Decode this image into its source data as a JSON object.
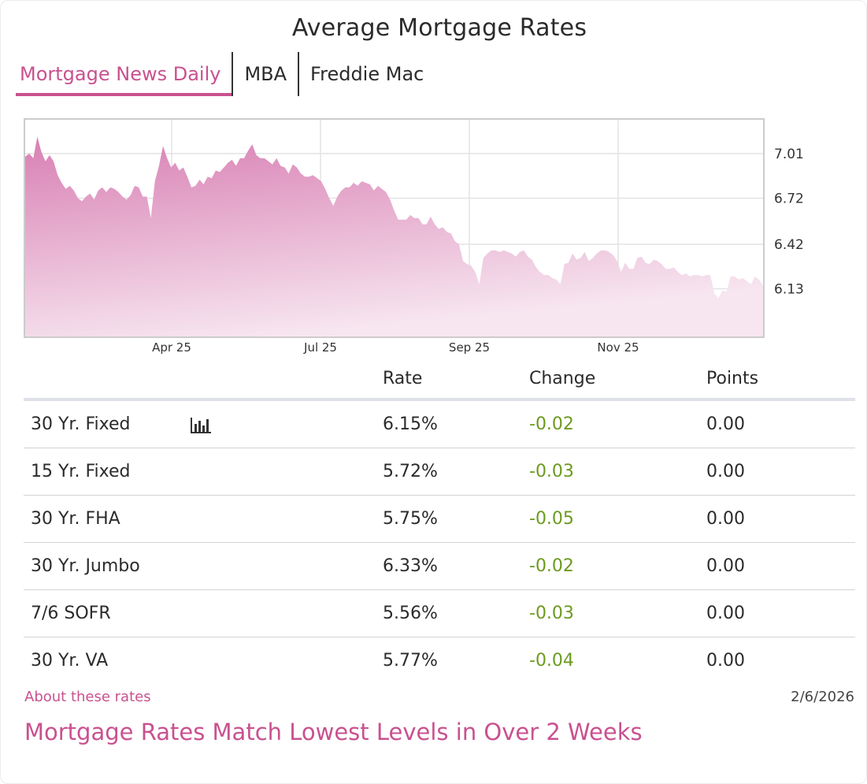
{
  "title": "Average Mortgage Rates",
  "tabs": [
    {
      "label": "Mortgage News Daily",
      "active": true
    },
    {
      "label": "MBA",
      "active": false
    },
    {
      "label": "Freddie Mac",
      "active": false
    }
  ],
  "colors": {
    "accent": "#c9518f",
    "negative_change": "#6c9a1f",
    "area_top": "#d87fb3",
    "area_bottom": "#f7e6f0"
  },
  "chart_data": {
    "type": "area",
    "title": "",
    "xlabel": "",
    "ylabel": "",
    "x_tick_labels": [
      "Apr 25",
      "Jul 25",
      "Sep 25",
      "Nov 25"
    ],
    "y_tick_labels": [
      "7.01",
      "6.72",
      "6.42",
      "6.13"
    ],
    "y_ticks": [
      7.01,
      6.72,
      6.42,
      6.13
    ],
    "ylim": [
      5.82,
      7.23
    ],
    "grid": true,
    "series": [
      {
        "values": [
          6.99,
          7.01,
          6.98,
          7.12,
          7.02,
          6.96,
          7.0,
          6.96,
          6.87,
          6.82,
          6.78,
          6.8,
          6.77,
          6.72,
          6.7,
          6.73,
          6.75,
          6.71,
          6.77,
          6.79,
          6.76,
          6.79,
          6.78,
          6.76,
          6.73,
          6.71,
          6.74,
          6.8,
          6.79,
          6.73,
          6.73,
          6.59,
          6.83,
          6.93,
          7.06,
          6.98,
          6.92,
          6.95,
          6.9,
          6.92,
          6.86,
          6.79,
          6.8,
          6.84,
          6.81,
          6.86,
          6.85,
          6.9,
          6.89,
          6.92,
          6.95,
          6.97,
          6.93,
          6.98,
          6.98,
          7.03,
          7.07,
          7.0,
          6.98,
          6.98,
          6.96,
          6.94,
          6.98,
          6.93,
          6.92,
          6.88,
          6.94,
          6.92,
          6.88,
          6.86,
          6.86,
          6.87,
          6.85,
          6.83,
          6.78,
          6.72,
          6.67,
          6.73,
          6.77,
          6.79,
          6.79,
          6.82,
          6.8,
          6.83,
          6.82,
          6.81,
          6.77,
          6.8,
          6.78,
          6.76,
          6.71,
          6.64,
          6.58,
          6.58,
          6.58,
          6.61,
          6.59,
          6.59,
          6.55,
          6.55,
          6.6,
          6.55,
          6.52,
          6.53,
          6.5,
          6.49,
          6.44,
          6.42,
          6.31,
          6.29,
          6.28,
          6.24,
          6.16,
          6.33,
          6.36,
          6.38,
          6.38,
          6.37,
          6.38,
          6.37,
          6.36,
          6.34,
          6.37,
          6.38,
          6.34,
          6.32,
          6.27,
          6.24,
          6.22,
          6.22,
          6.2,
          6.19,
          6.16,
          6.29,
          6.3,
          6.36,
          6.32,
          6.33,
          6.37,
          6.31,
          6.33,
          6.36,
          6.38,
          6.38,
          6.37,
          6.35,
          6.31,
          6.24,
          6.3,
          6.26,
          6.26,
          6.33,
          6.34,
          6.3,
          6.29,
          6.32,
          6.31,
          6.29,
          6.26,
          6.26,
          6.27,
          6.24,
          6.22,
          6.23,
          6.21,
          6.22,
          6.22,
          6.21,
          6.22,
          6.22,
          6.1,
          6.07,
          6.12,
          6.11,
          6.21,
          6.21,
          6.19,
          6.2,
          6.18,
          6.16,
          6.21,
          6.19,
          6.15
        ]
      }
    ]
  },
  "table": {
    "headers": [
      "",
      "Rate",
      "Change",
      "Points"
    ],
    "rows": [
      {
        "name": "30 Yr. Fixed",
        "rate": "6.15%",
        "change": "-0.02",
        "points": "0.00",
        "chart_icon": "bar-chart-icon"
      },
      {
        "name": "15 Yr. Fixed",
        "rate": "5.72%",
        "change": "-0.03",
        "points": "0.00"
      },
      {
        "name": "30 Yr. FHA",
        "rate": "5.75%",
        "change": "-0.05",
        "points": "0.00"
      },
      {
        "name": "30 Yr. Jumbo",
        "rate": "6.33%",
        "change": "-0.02",
        "points": "0.00"
      },
      {
        "name": "7/6 SOFR",
        "rate": "5.56%",
        "change": "-0.03",
        "points": "0.00"
      },
      {
        "name": "30 Yr. VA",
        "rate": "5.77%",
        "change": "-0.04",
        "points": "0.00"
      }
    ]
  },
  "footer": {
    "about_link": "About these rates",
    "date": "2/6/2026",
    "headline": "Mortgage Rates Match Lowest Levels in Over 2 Weeks"
  }
}
